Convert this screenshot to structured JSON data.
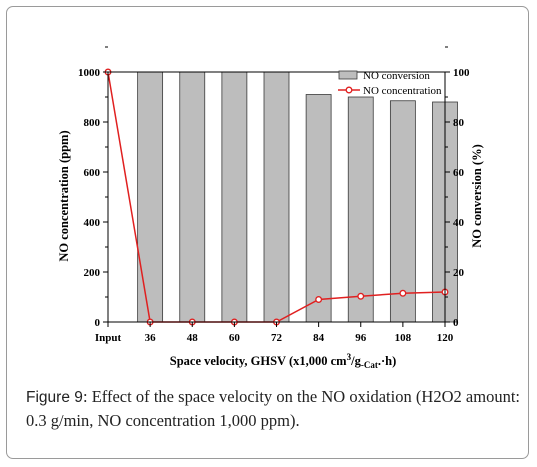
{
  "chart_data": {
    "type": "bar+line",
    "categories": [
      "Input",
      "36",
      "48",
      "60",
      "72",
      "84",
      "96",
      "108",
      "120"
    ],
    "series": [
      {
        "name": "NO conversion",
        "type": "bar",
        "axis": "right",
        "values": [
          null,
          100,
          100,
          100,
          100,
          91,
          90,
          88.5,
          88
        ]
      },
      {
        "name": "NO concentration",
        "type": "line",
        "axis": "left",
        "values": [
          1000,
          0,
          0,
          0,
          0,
          90,
          103,
          115,
          120
        ]
      }
    ],
    "xlabel_parts": {
      "pre": "Space velocity, GHSV (x1,000 cm",
      "sup": "3",
      "mid": "/g",
      "sub": "-Cat",
      "post": ".·h)"
    },
    "ylabel_left": "NO concentration (ppm)",
    "ylabel_right": "NO conversion (%)",
    "ylim_left": [
      0,
      1000
    ],
    "ylim_right": [
      0,
      100
    ],
    "yticks_left": [
      "0",
      "200",
      "400",
      "600",
      "800",
      "1000"
    ],
    "yticks_right": [
      "0",
      "20",
      "40",
      "60",
      "80",
      "100"
    ],
    "legend_position": "top-right",
    "grid": false,
    "colors": {
      "bar_fill": "#bdbdbd",
      "bar_stroke": "#3a3a3a",
      "line": "#e02020",
      "marker_fill": "#ffffff"
    }
  },
  "caption": {
    "label": "Figure 9",
    "text": ": Effect of the space velocity on the NO oxidation (H2O2 amount: 0.3 g/min, NO concentration 1,000 ppm)."
  }
}
